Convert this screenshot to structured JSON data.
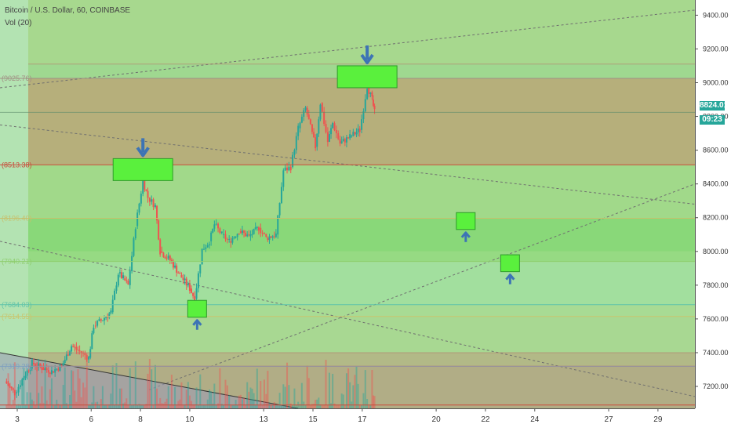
{
  "header": {
    "symbol_line": "Bitcoin / U.S. Dollar, 60, COINBASE",
    "indicator_line": "Vol (20)"
  },
  "last_price": {
    "value": "8824.01",
    "countdown": "09:23",
    "color": "#26a69a"
  },
  "chart_data": {
    "type": "candlestick",
    "x_tick_labels": [
      "3",
      "6",
      "8",
      "10",
      "13",
      "15",
      "17",
      "20",
      "22",
      "24",
      "27",
      "29"
    ],
    "x_tick_days": [
      3,
      6,
      8,
      10,
      13,
      15,
      17,
      20,
      22,
      24,
      27,
      29
    ],
    "xlim_days": [
      2.3,
      30.5
    ],
    "y_tick_labels": [
      "9400.00",
      "9200.00",
      "9000.00",
      "8800.00",
      "8600.00",
      "8400.00",
      "8200.00",
      "8000.00",
      "7800.00",
      "7600.00",
      "7400.00",
      "7200.00"
    ],
    "y_ticks": [
      9400,
      9200,
      9000,
      8800,
      8600,
      8400,
      8200,
      8000,
      7800,
      7600,
      7400,
      7200
    ],
    "ylim": [
      7070,
      9490
    ],
    "price_path": [
      [
        2.5,
        7230
      ],
      [
        2.9,
        7160
      ],
      [
        3.2,
        7240
      ],
      [
        3.6,
        7340
      ],
      [
        4.0,
        7310
      ],
      [
        4.4,
        7290
      ],
      [
        4.8,
        7320
      ],
      [
        5.2,
        7440
      ],
      [
        5.6,
        7400
      ],
      [
        5.9,
        7370
      ],
      [
        6.1,
        7560
      ],
      [
        6.4,
        7590
      ],
      [
        6.8,
        7640
      ],
      [
        7.1,
        7870
      ],
      [
        7.3,
        7840
      ],
      [
        7.5,
        7800
      ],
      [
        7.8,
        8150
      ],
      [
        8.1,
        8420
      ],
      [
        8.3,
        8320
      ],
      [
        8.6,
        8270
      ],
      [
        8.8,
        8000
      ],
      [
        9.2,
        7950
      ],
      [
        9.6,
        7860
      ],
      [
        10.0,
        7780
      ],
      [
        10.2,
        7720
      ],
      [
        10.5,
        8010
      ],
      [
        10.8,
        8060
      ],
      [
        11.0,
        8160
      ],
      [
        11.3,
        8100
      ],
      [
        11.6,
        8060
      ],
      [
        12.0,
        8120
      ],
      [
        12.4,
        8090
      ],
      [
        12.8,
        8140
      ],
      [
        13.1,
        8080
      ],
      [
        13.5,
        8100
      ],
      [
        13.8,
        8480
      ],
      [
        14.1,
        8500
      ],
      [
        14.4,
        8730
      ],
      [
        14.7,
        8850
      ],
      [
        15.1,
        8620
      ],
      [
        15.3,
        8880
      ],
      [
        15.6,
        8650
      ],
      [
        15.8,
        8760
      ],
      [
        16.1,
        8640
      ],
      [
        16.5,
        8680
      ],
      [
        16.9,
        8720
      ],
      [
        17.2,
        8980
      ],
      [
        17.4,
        8900
      ],
      [
        17.5,
        8824
      ]
    ],
    "horizontal_levels": [
      {
        "label": "(9025.76)",
        "value": 9025.76,
        "color": "#a08f84"
      },
      {
        "label": "(8513.38)",
        "value": 8513.38,
        "color": "#c94b3a"
      },
      {
        "label": "(8196.40)",
        "value": 8196.4,
        "color": "#c7c06d"
      },
      {
        "label": "(7940.21)",
        "value": 7940.21,
        "color": "#8fce6f"
      },
      {
        "label": "(7684.03)",
        "value": 7684.03,
        "color": "#5fc3a9"
      },
      {
        "label": "(7614.55)",
        "value": 7614.55,
        "color": "#c9c56e"
      },
      {
        "label": "(7319.28)",
        "value": 7319.28,
        "color": "#7fa0c0"
      }
    ],
    "signals": [
      {
        "type": "sell",
        "day": 8.1,
        "price_low": 8420,
        "price_high": 8550
      },
      {
        "type": "sell",
        "day": 17.2,
        "price_low": 8970,
        "price_high": 9100
      },
      {
        "type": "buy",
        "day": 10.3,
        "price_low": 7610,
        "price_high": 7710
      },
      {
        "type": "buy",
        "day": 21.2,
        "price_low": 8130,
        "price_high": 8230
      },
      {
        "type": "buy",
        "day": 23.0,
        "price_low": 7880,
        "price_high": 7980
      }
    ],
    "colors": {
      "up": "#26a69a",
      "down": "#ef5350",
      "signal_fill": "#5af03d",
      "arrow": "#3d74b5",
      "zone_green": "#8ed37a",
      "zone_brown": "#b8a878"
    },
    "grid": false
  }
}
